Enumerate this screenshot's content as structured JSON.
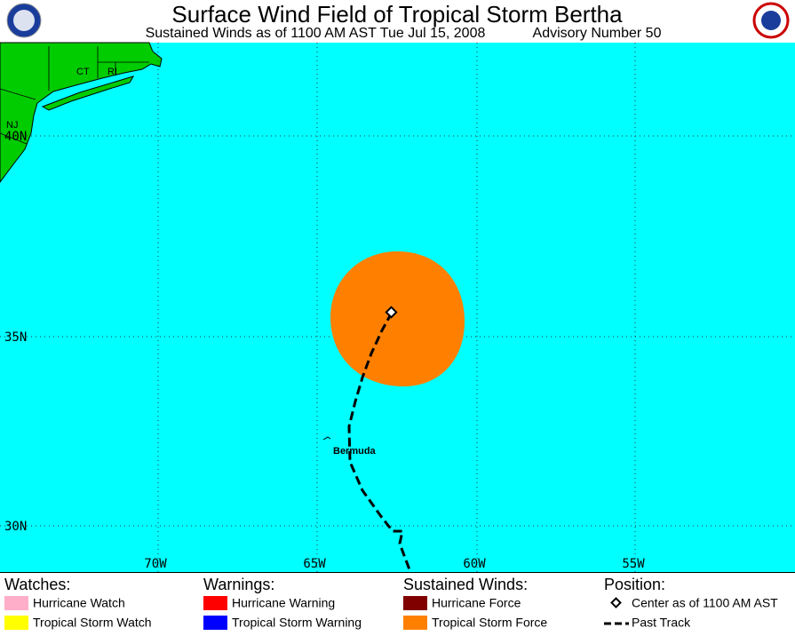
{
  "header": {
    "title": "Surface Wind Field of Tropical Storm Bertha",
    "subtitle": "Sustained Winds as of 1100 AM AST Tue Jul 15, 2008",
    "advisory": "Advisory Number 50"
  },
  "map": {
    "state_labels": [
      "CT",
      "RI",
      "NJ"
    ],
    "lat_labels": [
      "40N",
      "35N",
      "30N"
    ],
    "lon_labels": [
      "70W",
      "65W",
      "60W",
      "55W"
    ],
    "place_label": "Bermuda"
  },
  "legend": {
    "groups": [
      {
        "heading": "Watches:",
        "items": [
          "Hurricane Watch",
          "Tropical Storm Watch"
        ]
      },
      {
        "heading": "Warnings:",
        "items": [
          "Hurricane Warning",
          "Tropical Storm Warning"
        ]
      },
      {
        "heading": "Sustained Winds:",
        "items": [
          "Hurricane Force",
          "Tropical Storm Force"
        ]
      },
      {
        "heading": "Position:",
        "items": [
          "Center as of 1100 AM AST",
          "Past Track"
        ]
      }
    ]
  }
}
